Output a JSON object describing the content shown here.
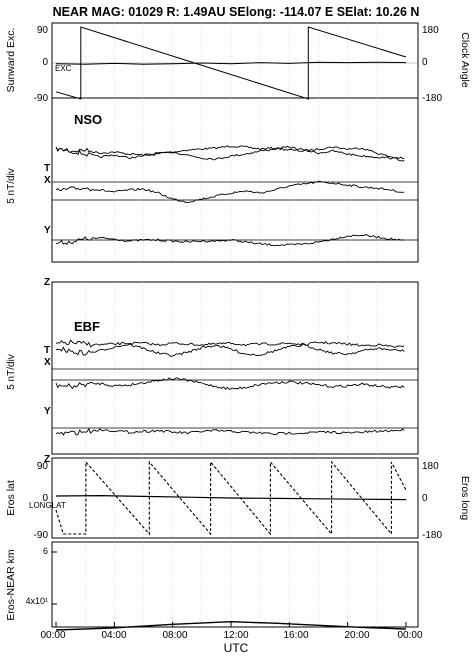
{
  "header": {
    "title": "NEAR MAG: 01029  R: 1.49AU  SElong: -114.07 E  SElat:   10.26 N"
  },
  "colors": {
    "ink": "#000000",
    "grid": "#c8c8c8",
    "background": "#ffffff"
  },
  "chart_data": [
    {
      "id": "sunward",
      "type": "line",
      "ylabel_left": "Sunward Exc.",
      "ylabel_right": "Clock Angle",
      "left_ticks": [
        "90",
        "0",
        "-90"
      ],
      "right_ticks": [
        "180",
        "0",
        "-180"
      ],
      "ylim_left": [
        -90,
        90
      ],
      "ylim_right": [
        -180,
        180
      ],
      "annotation": "EXC",
      "series": [
        {
          "name": "",
          "axis": "right",
          "points": [
            [
              0,
              -144
            ],
            [
              1.7,
              -180
            ],
            [
              1.7,
              180
            ],
            [
              9.5,
              0
            ],
            [
              17.3,
              -180
            ],
            [
              17.3,
              180
            ],
            [
              24,
              30
            ]
          ]
        },
        {
          "name": "",
          "axis": "left",
          "points": [
            [
              0,
              -2
            ],
            [
              2,
              -3
            ],
            [
              4,
              -1
            ],
            [
              6,
              -3
            ],
            [
              8,
              -2
            ],
            [
              10,
              0
            ],
            [
              12,
              -2
            ],
            [
              14,
              1
            ],
            [
              16,
              -1
            ],
            [
              18,
              2
            ],
            [
              20,
              1
            ],
            [
              22,
              2
            ],
            [
              24,
              1
            ]
          ]
        }
      ]
    },
    {
      "id": "nso",
      "type": "line",
      "title": "NSO",
      "ylabel": "5 nT/div",
      "series_labels": [
        "T",
        "X",
        "Y",
        "Z"
      ],
      "series": [
        {
          "name": "T",
          "values": [
            4.6,
            4.4,
            4.5,
            4.2,
            4.3,
            4.1,
            4.0,
            4.2,
            4.3,
            4.5,
            4.6,
            4.7,
            4.9,
            4.8,
            4.6,
            4.7,
            4.5,
            4.4,
            4.6,
            4.8,
            4.6,
            4.7,
            4.2,
            3.8,
            3.6
          ]
        },
        {
          "name": "X",
          "values": [
            4.8,
            4.6,
            4.3,
            4.0,
            4.2,
            3.9,
            4.1,
            4.3,
            4.5,
            4.2,
            3.9,
            3.8,
            4.1,
            4.3,
            4.6,
            4.8,
            5.0,
            4.7,
            4.4,
            4.6,
            4.3,
            4.1,
            4.0,
            3.9,
            3.6
          ]
        },
        {
          "name": "Y",
          "values": [
            2.4,
            2.6,
            2.7,
            2.5,
            2.3,
            2.5,
            2.6,
            2.2,
            1.6,
            1.3,
            1.6,
            1.9,
            2.2,
            2.4,
            2.2,
            2.5,
            2.9,
            3.1,
            3.3,
            3.2,
            3.0,
            2.8,
            2.7,
            2.5,
            2.2
          ]
        },
        {
          "name": "Z",
          "values": [
            0.7,
            0.8,
            1.1,
            1.2,
            1.1,
            0.9,
            1.0,
            1.0,
            0.9,
            0.8,
            0.9,
            0.9,
            1.0,
            0.8,
            0.6,
            0.5,
            0.5,
            0.6,
            0.8,
            1.1,
            1.4,
            1.5,
            1.3,
            1.1,
            0.9
          ]
        }
      ]
    },
    {
      "id": "ebf",
      "type": "line",
      "title": "EBF",
      "ylabel": "5 nT/div",
      "series_labels": [
        "T",
        "X",
        "Y",
        "Z"
      ],
      "series": [
        {
          "name": "T",
          "values": [
            4.5,
            4.7,
            4.5,
            4.4,
            4.5,
            4.6,
            4.6,
            4.4,
            4.6,
            4.5,
            4.4,
            4.5,
            4.6,
            4.4,
            4.5,
            4.5,
            4.6,
            4.4,
            4.7,
            4.6,
            4.5,
            4.3,
            4.4,
            4.2,
            4.1
          ]
        },
        {
          "name": "X",
          "values": [
            4.3,
            3.8,
            3.6,
            3.9,
            4.4,
            4.7,
            4.2,
            3.6,
            3.3,
            3.7,
            4.3,
            4.6,
            4.1,
            3.5,
            3.4,
            3.9,
            4.4,
            4.6,
            4.1,
            3.6,
            3.5,
            3.9,
            4.2,
            4.0,
            3.9
          ]
        },
        {
          "name": "Y",
          "values": [
            2.5,
            2.3,
            2.6,
            2.7,
            2.4,
            2.5,
            2.8,
            3.1,
            3.3,
            3.1,
            2.7,
            2.3,
            2.0,
            2.2,
            2.6,
            2.8,
            2.9,
            2.7,
            2.5,
            2.3,
            2.4,
            2.6,
            2.4,
            2.2,
            2.3
          ]
        },
        {
          "name": "Z",
          "values": [
            0.4,
            0.5,
            0.7,
            0.9,
            0.8,
            0.6,
            0.7,
            0.8,
            0.6,
            0.5,
            0.7,
            0.8,
            0.7,
            0.6,
            0.5,
            0.4,
            0.5,
            0.5,
            0.6,
            0.6,
            0.5,
            0.6,
            0.7,
            0.8,
            0.9
          ]
        }
      ]
    },
    {
      "id": "eros_pos",
      "type": "line",
      "ylabel_left": "Eros lat",
      "ylabel_right": "Eros long",
      "left_ticks": [
        "90",
        "0",
        "-90"
      ],
      "right_ticks": [
        "180",
        "0",
        "-180"
      ],
      "ylim_left": [
        -90,
        90
      ],
      "ylim_right": [
        -180,
        180
      ],
      "annotation": "LONGLAT",
      "series": [
        {
          "name": "long",
          "axis": "right",
          "points": [
            [
              0,
              -60
            ],
            [
              0.5,
              -180
            ],
            [
              2.05,
              -180
            ],
            [
              2.05,
              180
            ],
            [
              6.4,
              -180
            ],
            [
              6.4,
              180
            ],
            [
              10.6,
              -180
            ],
            [
              10.6,
              180
            ],
            [
              14.7,
              -180
            ],
            [
              14.7,
              180
            ],
            [
              18.9,
              -180
            ],
            [
              18.9,
              180
            ],
            [
              23.0,
              -180
            ],
            [
              23.0,
              180
            ],
            [
              24,
              40
            ]
          ]
        },
        {
          "name": "lat",
          "axis": "left",
          "points": [
            [
              0,
              5
            ],
            [
              3,
              6
            ],
            [
              6,
              4
            ],
            [
              9,
              2
            ],
            [
              12,
              0
            ],
            [
              15,
              -1
            ],
            [
              18,
              -2
            ],
            [
              21,
              -3
            ],
            [
              24,
              -4
            ]
          ]
        }
      ]
    },
    {
      "id": "distance",
      "type": "line",
      "ylabel": "Eros-NEAR km",
      "tick_labels": [
        "6",
        "4x10¹"
      ],
      "series": [
        {
          "name": "",
          "points": [
            [
              0,
              35
            ],
            [
              4,
              35.4
            ],
            [
              8,
              36.1
            ],
            [
              12,
              36.6
            ],
            [
              15,
              36.3
            ],
            [
              18,
              35.9
            ],
            [
              21,
              35.5
            ],
            [
              24,
              35.2
            ]
          ]
        }
      ]
    }
  ],
  "x_axis": {
    "label": "UTC",
    "ticks": [
      "00:00",
      "04:00",
      "08:00",
      "12:00",
      "16:00",
      "20:00",
      "00:00"
    ]
  }
}
